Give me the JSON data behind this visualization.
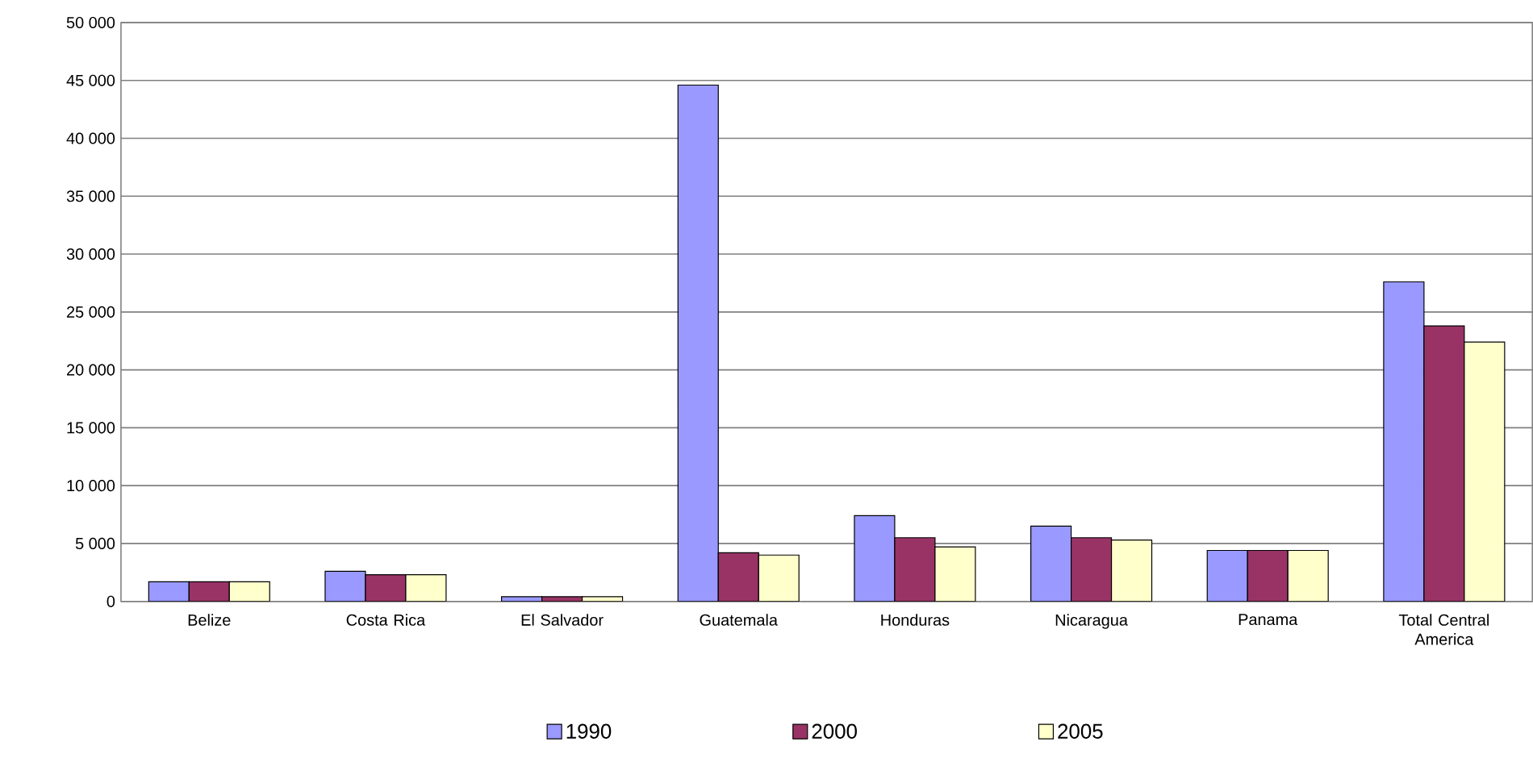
{
  "chart_data": {
    "type": "bar",
    "categories": [
      "Belize",
      "Costa Rica",
      "El Salvador",
      "Guatemala",
      "Honduras",
      "Nicaragua",
      "Panama",
      "Total Central America"
    ],
    "series": [
      {
        "name": "1990",
        "color": "#9999ff",
        "values": [
          1700,
          2600,
          400,
          44600,
          7400,
          6500,
          4400,
          27600
        ]
      },
      {
        "name": "2000",
        "color": "#993366",
        "values": [
          1700,
          2300,
          400,
          4200,
          5500,
          5500,
          4400,
          23800
        ]
      },
      {
        "name": "2005",
        "color": "#ffffcc",
        "values": [
          1700,
          2300,
          400,
          4000,
          4700,
          5300,
          4400,
          22400
        ]
      }
    ],
    "ylim": [
      0,
      50000
    ],
    "yticks": [
      0,
      {
        "value": 5000,
        "label": "5 000"
      },
      {
        "value": 10000,
        "label": "10 000"
      },
      {
        "value": 15000,
        "label": "15 000"
      },
      {
        "value": 20000,
        "label": "20 000"
      },
      {
        "value": 25000,
        "label": "25 000"
      },
      {
        "value": 30000,
        "label": "30 000"
      },
      {
        "value": 35000,
        "label": "35 000"
      },
      {
        "value": 40000,
        "label": "40 000"
      },
      {
        "value": 45000,
        "label": "45 000"
      },
      {
        "value": 50000,
        "label": "50 000"
      }
    ],
    "grid": "y",
    "legend": "bottom"
  }
}
